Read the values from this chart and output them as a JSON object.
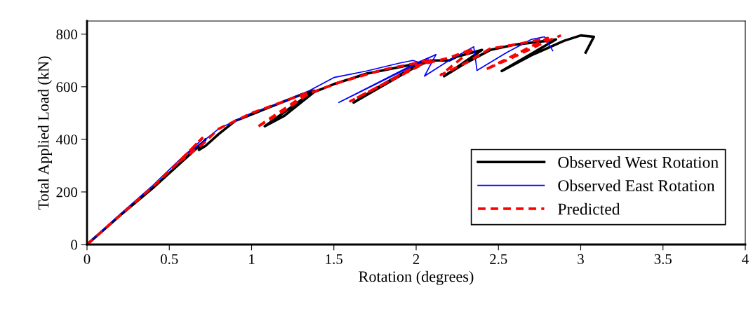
{
  "chart_data": {
    "type": "line",
    "xlabel": "Rotation (degrees)",
    "ylabel": "Total Applied Load (kN)",
    "xlim": [
      0,
      4
    ],
    "ylim": [
      0,
      850
    ],
    "xticks": [
      0,
      {
        "value": 0.5,
        "label": "0.5"
      },
      1,
      {
        "value": 1.5,
        "label": "1.5"
      },
      2,
      {
        "value": 2.5,
        "label": "2.5"
      },
      3,
      {
        "value": 3.5,
        "label": "3.5"
      },
      4
    ],
    "yticks": [
      0,
      200,
      400,
      600,
      800
    ],
    "grid": false,
    "legend": "bottom right",
    "series": [
      {
        "name": "Observed West Rotation",
        "color": "#000000",
        "line_style": "solid",
        "x": [
          0,
          0.2,
          0.4,
          0.55,
          0.7,
          0.72,
          0.68,
          0.72,
          0.8,
          0.9,
          1.0,
          1.1,
          1.2,
          1.3,
          1.38,
          1.08,
          1.2,
          1.3,
          1.38,
          1.5,
          1.7,
          1.9,
          2.05,
          1.62,
          1.8,
          2.0,
          2.1,
          2.2,
          2.25,
          2.4,
          2.17,
          2.3,
          2.45,
          2.6,
          2.8,
          2.85,
          2.52,
          2.7,
          2.9,
          3.0,
          3.08,
          3.03
        ],
        "values": [
          0,
          110,
          215,
          300,
          385,
          400,
          360,
          375,
          420,
          470,
          495,
          520,
          545,
          570,
          585,
          450,
          490,
          540,
          580,
          610,
          650,
          675,
          695,
          540,
          610,
          680,
          700,
          700,
          715,
          740,
          640,
          690,
          740,
          760,
          775,
          780,
          660,
          720,
          775,
          795,
          790,
          730
        ]
      },
      {
        "name": "Observed East Rotation",
        "color": "#0000ff",
        "line_style": "solid",
        "x": [
          0,
          0.2,
          0.4,
          0.55,
          0.7,
          0.58,
          0.7,
          0.8,
          1.0,
          1.2,
          1.35,
          1.5,
          1.7,
          1.9,
          1.98,
          2.02,
          2.12,
          1.53,
          1.75,
          2.0,
          2.12,
          2.05,
          2.2,
          2.35,
          2.37,
          2.55,
          2.7,
          2.78,
          2.83
        ],
        "values": [
          0,
          115,
          225,
          315,
          400,
          330,
          390,
          440,
          500,
          545,
          585,
          635,
          660,
          690,
          700,
          692,
          723,
          540,
          610,
          690,
          722,
          640,
          700,
          752,
          662,
          730,
          780,
          790,
          737
        ]
      },
      {
        "name": "Predicted",
        "color": "#ff0000",
        "line_style": "dashed",
        "x": [
          0,
          0.2,
          0.4,
          0.55,
          0.7,
          0.56,
          0.7,
          0.8,
          1.0,
          1.2,
          1.35,
          1.03,
          1.2,
          1.35,
          1.55,
          1.8,
          2.0,
          2.1,
          1.6,
          1.8,
          2.0,
          2.2,
          2.35,
          2.15,
          2.3,
          2.45,
          2.6,
          2.8,
          2.42,
          2.6,
          2.8,
          2.88
        ],
        "values": [
          0,
          110,
          220,
          310,
          405,
          315,
          380,
          440,
          500,
          545,
          580,
          445,
          510,
          575,
          620,
          665,
          690,
          705,
          545,
          610,
          680,
          710,
          745,
          645,
          690,
          745,
          760,
          785,
          665,
          715,
          775,
          795
        ]
      }
    ]
  }
}
